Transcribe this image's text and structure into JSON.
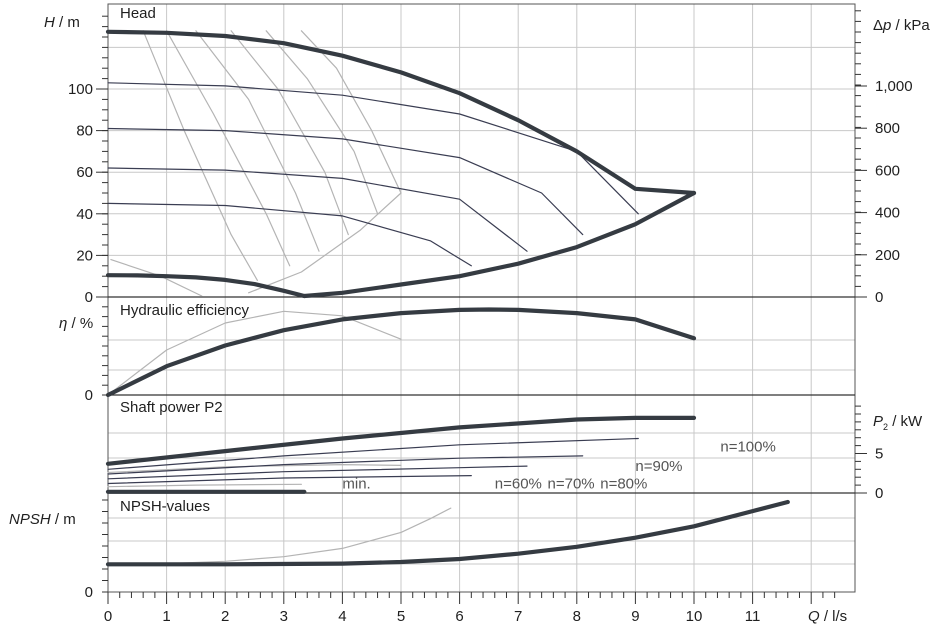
{
  "chart_data": {
    "type": "line",
    "x_axis": {
      "label_var": "Q",
      "label_unit": " / l/s",
      "min": 0,
      "max": 12.5,
      "ticks": [
        "0",
        "1",
        "2",
        "3",
        "4",
        "5",
        "6",
        "7",
        "8",
        "9",
        "10",
        "11"
      ],
      "grid": true
    },
    "colors": {
      "main": "#353b42",
      "speed": "#3a3d52",
      "grey": "#b4b4b4",
      "grid": "#c8c8c8"
    },
    "panels": {
      "head": {
        "title": "Head",
        "ylabel_var": "H",
        "ylabel_unit": " / m",
        "ylim": [
          0,
          130
        ],
        "y_ticks": [
          "0",
          "20",
          "40",
          "60",
          "80",
          "100"
        ],
        "right_label_prefix": "Δ",
        "right_label_var": "p",
        "right_label_unit": " / kPa",
        "right_range": [
          0,
          1275
        ],
        "right_ticks": [
          "0",
          "200",
          "400",
          "600",
          "800",
          "1,000"
        ],
        "series": [
          {
            "role": "max",
            "x": [
              0,
              1,
              2,
              3,
              4,
              5,
              6,
              7,
              8,
              9,
              10
            ],
            "y": [
              127.5,
              127,
              125.5,
              122,
              116,
              108,
              98,
              85,
              70,
              52,
              50
            ]
          },
          {
            "role": "min",
            "x": [
              0,
              0.5,
              1,
              1.5,
              2,
              2.5,
              3,
              3.35
            ],
            "y": [
              10.5,
              10.4,
              10,
              9.4,
              8.2,
              6.2,
              3,
              0.5
            ]
          },
          {
            "role": "speed",
            "x": [
              0,
              2,
              4,
              6,
              8,
              9.05
            ],
            "y": [
              103,
              101.5,
              97,
              88,
              70,
              40
            ]
          },
          {
            "role": "speed",
            "x": [
              0,
              2,
              4,
              6,
              7.4,
              8.1
            ],
            "y": [
              81,
              80,
              76,
              67,
              50,
              30
            ]
          },
          {
            "role": "speed",
            "x": [
              0,
              2,
              4,
              6,
              7.15
            ],
            "y": [
              62,
              61,
              57,
              47,
              22
            ]
          },
          {
            "role": "speed",
            "x": [
              0,
              2,
              4,
              5.5,
              6.2
            ],
            "y": [
              45,
              44,
              39,
              27,
              15
            ]
          },
          {
            "role": "boundary",
            "x": [
              3.35,
              4,
              5,
              6,
              7,
              8,
              9,
              10
            ],
            "y": [
              0.5,
              2,
              6,
              10,
              16,
              24,
              35,
              50
            ]
          },
          {
            "role": "grey",
            "x": [
              3.3,
              3.9,
              4.5,
              5
            ],
            "y": [
              128,
              110,
              80,
              50
            ]
          },
          {
            "role": "grey",
            "x": [
              2.7,
              3.4,
              4.2,
              4.6
            ],
            "y": [
              128,
              105,
              70,
              40
            ]
          },
          {
            "role": "grey",
            "x": [
              2.1,
              2.9,
              3.7,
              4.1
            ],
            "y": [
              128,
              100,
              60,
              30
            ]
          },
          {
            "role": "grey",
            "x": [
              1.5,
              2.4,
              3.2,
              3.6
            ],
            "y": [
              128,
              95,
              50,
              22
            ]
          },
          {
            "role": "grey",
            "x": [
              1.0,
              1.8,
              2.7,
              3.1
            ],
            "y": [
              128,
              88,
              40,
              15
            ]
          },
          {
            "role": "grey",
            "x": [
              0.6,
              1.3,
              2.1,
              2.55
            ],
            "y": [
              128,
              80,
              30,
              8
            ]
          },
          {
            "role": "grey",
            "x": [
              0.05,
              0.9,
              1.6
            ],
            "y": [
              18,
              10,
              0.5
            ]
          },
          {
            "role": "grey",
            "x": [
              2.4,
              3.3,
              4.3,
              5.0
            ],
            "y": [
              2,
              12,
              32,
              50
            ]
          }
        ]
      },
      "efficiency": {
        "title": "Hydraulic efficiency",
        "ylabel_var": "η",
        "ylabel_unit": " / %",
        "y_ticks": [
          "0"
        ],
        "ylim": [
          0,
          100
        ],
        "series": [
          {
            "role": "max",
            "x": [
              0,
              1,
              2,
              3,
              4,
              5,
              6,
              6.5,
              7,
              8,
              9,
              10
            ],
            "y": [
              0,
              32,
              55,
              72,
              84,
              91,
              94.5,
              95,
              94.5,
              91,
              84,
              63
            ]
          },
          {
            "role": "grey",
            "x": [
              0,
              1,
              2,
              3,
              4,
              5
            ],
            "y": [
              0,
              50,
              80,
              93,
              88,
              62
            ]
          }
        ]
      },
      "power": {
        "title": "Shaft power P2",
        "right_label_var": "P",
        "right_label_sub": "2",
        "right_label_unit": " / kW",
        "right_range": [
          0,
          10
        ],
        "right_ticks": [
          "0",
          "5"
        ],
        "series": [
          {
            "role": "max",
            "x": [
              0,
              2,
              4,
              6,
              8,
              9,
              10
            ],
            "y": [
              3.7,
              5.3,
              6.9,
              8.3,
              9.3,
              9.5,
              9.5
            ]
          },
          {
            "role": "speed",
            "x": [
              0,
              3,
              6,
              9.05
            ],
            "y": [
              3.0,
              4.7,
              6.1,
              6.9
            ]
          },
          {
            "role": "speed",
            "x": [
              0,
              3,
              6,
              8.1
            ],
            "y": [
              2.4,
              3.6,
              4.4,
              4.7
            ]
          },
          {
            "role": "speed",
            "x": [
              0,
              3,
              6,
              7.15
            ],
            "y": [
              1.8,
              2.7,
              3.2,
              3.4
            ]
          },
          {
            "role": "speed",
            "x": [
              0,
              3,
              6.2
            ],
            "y": [
              1.2,
              1.9,
              2.2
            ]
          },
          {
            "role": "min",
            "x": [
              0,
              3.35
            ],
            "y": [
              0.15,
              0.15
            ]
          },
          {
            "role": "grey",
            "x": [
              0,
              2,
              4,
              5
            ],
            "y": [
              2.6,
              3.3,
              3.6,
              3.5
            ]
          },
          {
            "role": "grey",
            "x": [
              0,
              1.5,
              3.3
            ],
            "y": [
              0.8,
              1.0,
              1.1
            ]
          }
        ]
      },
      "npsh": {
        "title": "NPSH-values",
        "ylabel_var": "NPSH",
        "ylabel_unit": " / m",
        "y_ticks": [
          "0"
        ],
        "ylim": [
          0,
          1
        ],
        "series": [
          {
            "role": "max",
            "x": [
              0,
              2,
              4,
              5,
              6,
              7,
              8,
              9,
              10,
              11,
              11.6
            ],
            "y": [
              0.18,
              0.18,
              0.19,
              0.21,
              0.25,
              0.32,
              0.41,
              0.53,
              0.68,
              0.88,
              1.0
            ]
          },
          {
            "role": "grey",
            "x": [
              0,
              1,
              2,
              3,
              4,
              5,
              5.5,
              5.85
            ],
            "y": [
              0.18,
              0.19,
              0.22,
              0.28,
              0.39,
              0.6,
              0.78,
              0.92
            ]
          }
        ]
      }
    },
    "speed_labels": [
      {
        "text": "n=100%",
        "x": 10.45,
        "p2": 5.9
      },
      {
        "text": "n=90%",
        "x": 9.0,
        "p2": 3.4
      },
      {
        "text": "n=80%",
        "x": 8.4,
        "p2": 1.2
      },
      {
        "text": "n=70%",
        "x": 7.5,
        "p2": 1.2
      },
      {
        "text": "n=60%",
        "x": 6.6,
        "p2": 1.2
      },
      {
        "text": "min.",
        "x": 4.0,
        "p2": 1.2
      }
    ]
  }
}
